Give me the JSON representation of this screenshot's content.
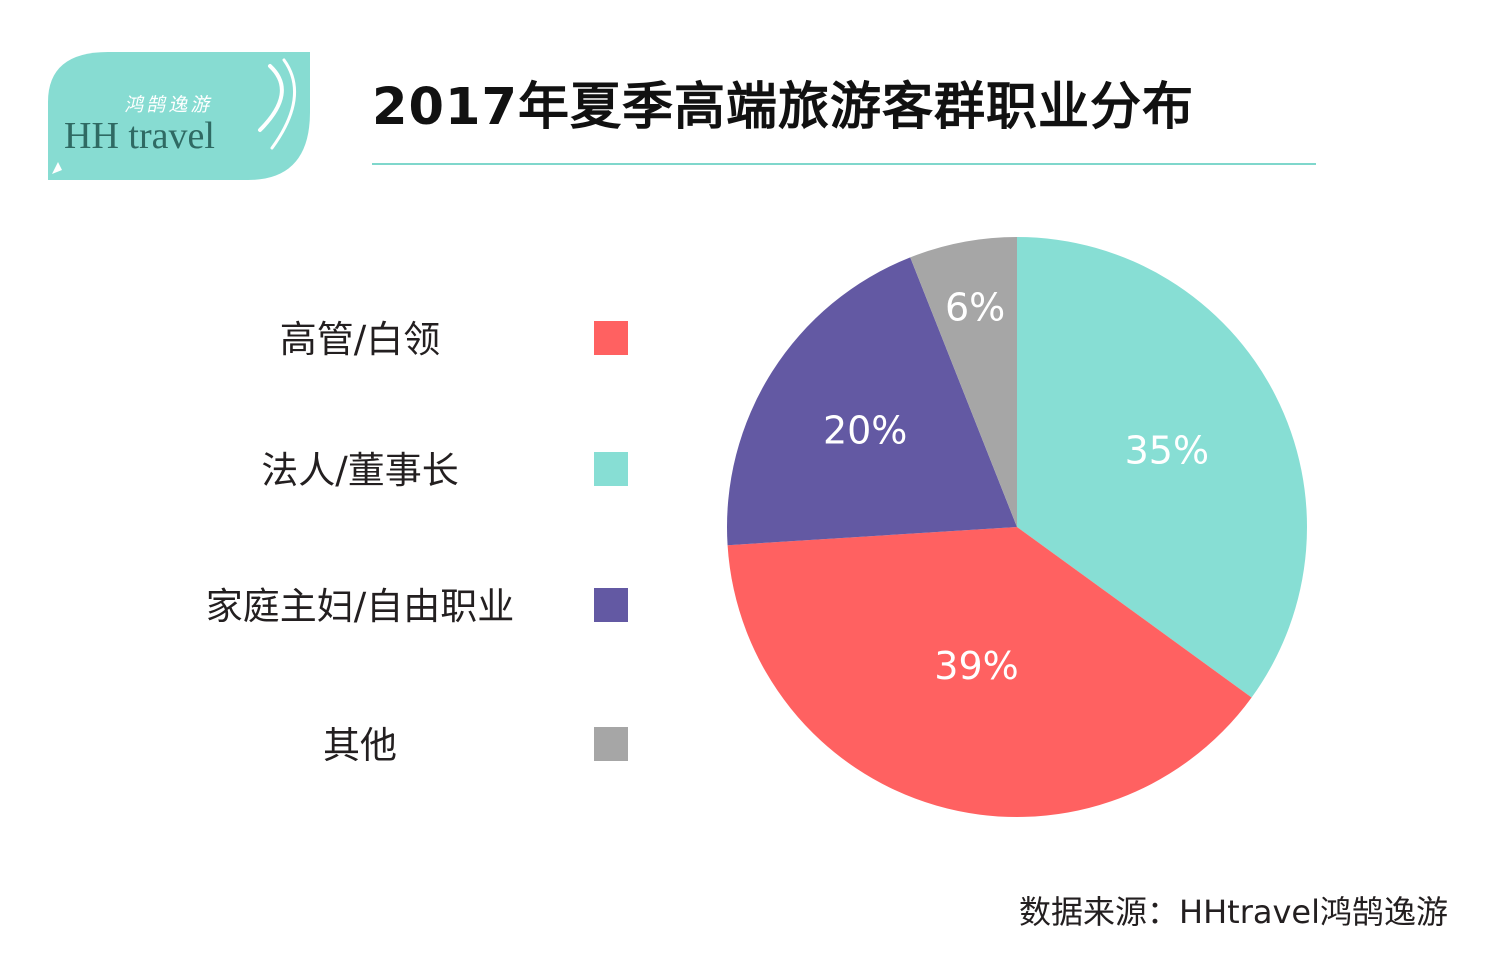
{
  "logo": {
    "cn": "鸿鹄逸游",
    "en": "HH travel",
    "color": "#87dcd2"
  },
  "chart_data": {
    "type": "pie",
    "title": "2017年夏季高端旅游客群职业分布",
    "legend_position": "left",
    "slices": [
      {
        "label": "法人/董事长",
        "value": 35,
        "text": "35%",
        "color": "#87ded4"
      },
      {
        "label": "高管/白领",
        "value": 39,
        "text": "39%",
        "color": "#ff6161"
      },
      {
        "label": "家庭主妇/自由职业",
        "value": 20,
        "text": "20%",
        "color": "#6359a3"
      },
      {
        "label": "其他",
        "value": 6,
        "text": "6%",
        "color": "#a6a6a6"
      }
    ],
    "legend": [
      {
        "label": "高管/白领",
        "color": "#ff6161"
      },
      {
        "label": "法人/董事长",
        "color": "#87ded4"
      },
      {
        "label": "家庭主妇/自由职业",
        "color": "#6359a3"
      },
      {
        "label": "其他",
        "color": "#a6a6a6"
      }
    ]
  },
  "source": "数据来源：HHtravel鸿鹄逸游"
}
